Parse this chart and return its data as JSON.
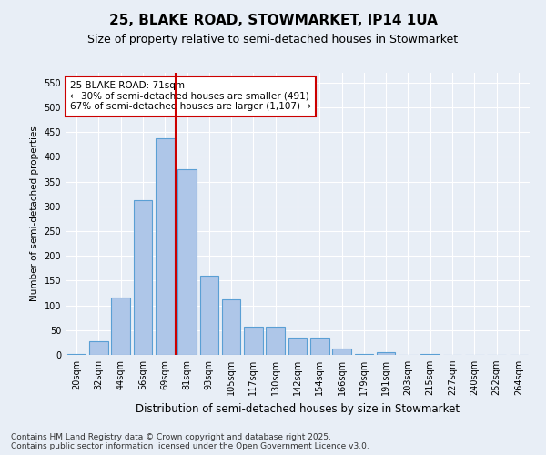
{
  "title": "25, BLAKE ROAD, STOWMARKET, IP14 1UA",
  "subtitle": "Size of property relative to semi-detached houses in Stowmarket",
  "xlabel": "Distribution of semi-detached houses by size in Stowmarket",
  "ylabel": "Number of semi-detached properties",
  "categories": [
    "20sqm",
    "32sqm",
    "44sqm",
    "56sqm",
    "69sqm",
    "81sqm",
    "93sqm",
    "105sqm",
    "117sqm",
    "130sqm",
    "142sqm",
    "154sqm",
    "166sqm",
    "179sqm",
    "191sqm",
    "203sqm",
    "215sqm",
    "227sqm",
    "240sqm",
    "252sqm",
    "264sqm"
  ],
  "values": [
    2,
    27,
    115,
    312,
    437,
    375,
    160,
    112,
    57,
    57,
    35,
    35,
    13,
    1,
    5,
    0,
    1,
    0,
    0,
    0,
    0
  ],
  "bar_color": "#aec6e8",
  "bar_edge_color": "#5a9fd4",
  "vline_x": 4.5,
  "vline_color": "#cc0000",
  "annotation_text": "25 BLAKE ROAD: 71sqm\n← 30% of semi-detached houses are smaller (491)\n67% of semi-detached houses are larger (1,107) →",
  "annotation_box_color": "#ffffff",
  "annotation_box_edge_color": "#cc0000",
  "ylim": [
    0,
    570
  ],
  "yticks": [
    0,
    50,
    100,
    150,
    200,
    250,
    300,
    350,
    400,
    450,
    500,
    550
  ],
  "footnote": "Contains HM Land Registry data © Crown copyright and database right 2025.\nContains public sector information licensed under the Open Government Licence v3.0.",
  "bg_color": "#e8eef6",
  "plot_bg_color": "#e8eef6",
  "grid_color": "#ffffff",
  "title_fontsize": 11,
  "subtitle_fontsize": 9,
  "xlabel_fontsize": 8.5,
  "ylabel_fontsize": 7.5,
  "tick_fontsize": 7,
  "annotation_fontsize": 7.5,
  "footnote_fontsize": 6.5
}
